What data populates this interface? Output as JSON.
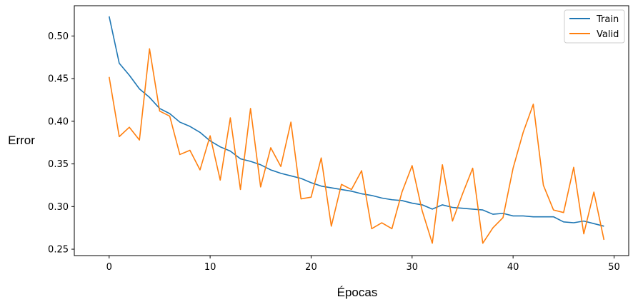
{
  "chart_data": {
    "type": "line",
    "title": "",
    "xlabel": "Épocas",
    "ylabel": "Error",
    "xlim": [
      -3.45,
      51.45
    ],
    "ylim": [
      0.2425,
      0.5355
    ],
    "x_ticks": [
      0,
      10,
      20,
      30,
      40,
      50
    ],
    "y_ticks": [
      0.25,
      0.3,
      0.35,
      0.4,
      0.45,
      0.5
    ],
    "x_tick_labels": [
      "0",
      "10",
      "20",
      "30",
      "40",
      "50"
    ],
    "y_tick_labels": [
      "0.25",
      "0.30",
      "0.35",
      "0.40",
      "0.45",
      "0.50"
    ],
    "grid": false,
    "legend_position": "top-right",
    "x": [
      0,
      1,
      2,
      3,
      4,
      5,
      6,
      7,
      8,
      9,
      10,
      11,
      12,
      13,
      14,
      15,
      16,
      17,
      18,
      19,
      20,
      21,
      22,
      23,
      24,
      25,
      26,
      27,
      28,
      29,
      30,
      31,
      32,
      33,
      34,
      35,
      36,
      37,
      38,
      39,
      40,
      41,
      42,
      43,
      44,
      45,
      46,
      47,
      48,
      49
    ],
    "series": [
      {
        "name": "Train",
        "color": "#1f77b4",
        "values": [
          0.523,
          0.468,
          0.454,
          0.438,
          0.428,
          0.415,
          0.409,
          0.399,
          0.394,
          0.387,
          0.377,
          0.37,
          0.365,
          0.356,
          0.353,
          0.349,
          0.343,
          0.339,
          0.336,
          0.333,
          0.328,
          0.324,
          0.322,
          0.32,
          0.318,
          0.315,
          0.313,
          0.31,
          0.308,
          0.307,
          0.304,
          0.302,
          0.297,
          0.302,
          0.299,
          0.298,
          0.297,
          0.296,
          0.291,
          0.292,
          0.289,
          0.289,
          0.288,
          0.288,
          0.288,
          0.282,
          0.281,
          0.283,
          0.28,
          0.277
        ]
      },
      {
        "name": "Valid",
        "color": "#ff7f0e",
        "values": [
          0.452,
          0.382,
          0.393,
          0.378,
          0.485,
          0.412,
          0.406,
          0.361,
          0.366,
          0.343,
          0.383,
          0.331,
          0.404,
          0.32,
          0.415,
          0.323,
          0.369,
          0.347,
          0.399,
          0.309,
          0.311,
          0.357,
          0.277,
          0.326,
          0.32,
          0.342,
          0.274,
          0.281,
          0.274,
          0.317,
          0.348,
          0.295,
          0.257,
          0.349,
          0.283,
          0.315,
          0.345,
          0.257,
          0.275,
          0.287,
          0.345,
          0.387,
          0.42,
          0.325,
          0.296,
          0.293,
          0.346,
          0.268,
          0.317,
          0.261
        ]
      }
    ]
  }
}
